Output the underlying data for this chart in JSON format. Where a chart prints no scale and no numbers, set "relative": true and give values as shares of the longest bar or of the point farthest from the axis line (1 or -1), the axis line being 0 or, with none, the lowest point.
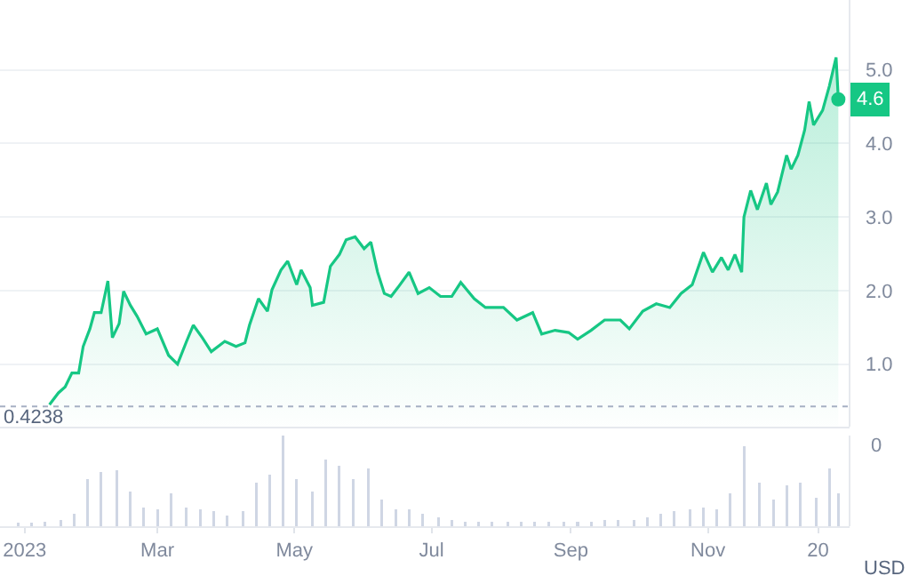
{
  "chart_data": [
    {
      "type": "area",
      "color": "#16c784",
      "x": [
        "2023-01-12",
        "2023-01-16",
        "2023-01-19",
        "2023-01-22",
        "2023-01-25",
        "2023-01-27",
        "2023-01-30",
        "2023-02-01",
        "2023-02-04",
        "2023-02-07",
        "2023-02-09",
        "2023-02-12",
        "2023-02-14",
        "2023-02-17",
        "2023-02-20",
        "2023-02-24",
        "2023-03-01",
        "2023-03-06",
        "2023-03-10",
        "2023-03-14",
        "2023-03-17",
        "2023-03-21",
        "2023-03-25",
        "2023-03-31",
        "2023-04-05",
        "2023-04-09",
        "2023-04-11",
        "2023-04-15",
        "2023-04-19",
        "2023-04-21",
        "2023-04-25",
        "2023-04-28",
        "2023-05-02",
        "2023-05-04",
        "2023-05-08",
        "2023-05-09",
        "2023-05-14",
        "2023-05-17",
        "2023-05-21",
        "2023-05-24",
        "2023-05-28",
        "2023-06-01",
        "2023-06-04",
        "2023-06-07",
        "2023-06-10",
        "2023-06-13",
        "2023-06-16",
        "2023-06-21",
        "2023-06-25",
        "2023-06-30",
        "2023-07-05",
        "2023-07-10",
        "2023-07-14",
        "2023-07-20",
        "2023-07-25",
        "2023-08-02",
        "2023-08-08",
        "2023-08-15",
        "2023-08-19",
        "2023-08-25",
        "2023-08-31",
        "2023-09-04",
        "2023-09-10",
        "2023-09-16",
        "2023-09-23",
        "2023-09-27",
        "2023-10-03",
        "2023-10-09",
        "2023-10-15",
        "2023-10-20",
        "2023-10-25",
        "2023-10-30",
        "2023-11-03",
        "2023-11-07",
        "2023-11-10",
        "2023-11-13",
        "2023-11-16",
        "2023-11-17",
        "2023-11-20",
        "2023-11-23",
        "2023-11-27",
        "2023-11-29",
        "2023-12-02",
        "2023-12-06",
        "2023-12-08",
        "2023-12-11",
        "2023-12-14",
        "2023-12-16",
        "2023-12-18",
        "2023-12-22",
        "2023-12-25",
        "2023-12-28",
        "2023-12-29"
      ],
      "values": [
        0.45,
        0.61,
        0.69,
        0.88,
        0.88,
        1.24,
        1.48,
        1.7,
        1.7,
        2.13,
        1.36,
        1.55,
        1.99,
        1.8,
        1.65,
        1.41,
        1.48,
        1.12,
        1.0,
        1.31,
        1.53,
        1.36,
        1.17,
        1.31,
        1.24,
        1.29,
        1.53,
        1.89,
        1.72,
        2.01,
        2.28,
        2.4,
        2.08,
        2.28,
        2.04,
        1.8,
        1.84,
        2.33,
        2.49,
        2.69,
        2.73,
        2.57,
        2.66,
        2.25,
        1.96,
        1.92,
        2.04,
        2.25,
        1.96,
        2.04,
        1.92,
        1.92,
        2.11,
        1.89,
        1.77,
        1.77,
        1.6,
        1.7,
        1.41,
        1.46,
        1.43,
        1.34,
        1.46,
        1.6,
        1.6,
        1.48,
        1.72,
        1.82,
        1.77,
        1.96,
        2.08,
        2.52,
        2.25,
        2.45,
        2.28,
        2.49,
        2.25,
        3.0,
        3.36,
        3.1,
        3.46,
        3.17,
        3.34,
        3.84,
        3.65,
        3.84,
        4.18,
        4.57,
        4.25,
        4.45,
        4.78,
        5.17,
        4.6
      ],
      "xlim": [
        "2022-12-21",
        "2024-01-03"
      ],
      "ylim": [
        0.15,
        5.95
      ],
      "yticks": [
        {
          "value": 1,
          "label": "1.0"
        },
        {
          "value": 2,
          "label": "2.0"
        },
        {
          "value": 3,
          "label": "3.0"
        },
        {
          "value": 4,
          "label": "4.0"
        },
        {
          "value": 5,
          "label": "5.0"
        }
      ],
      "grid": "y",
      "tick_labels": "y",
      "ref_lines": [
        {
          "axis": "y",
          "value": 0.4238,
          "label": "0.4238",
          "line_style": "dotted"
        }
      ],
      "annotations": [
        {
          "text": "4.6",
          "x": "2023-12-29",
          "y": 4.6
        }
      ]
    },
    {
      "type": "bar",
      "relative": true,
      "color": "#cfd6e4",
      "x": [
        "2022-12-29",
        "2023-01-04",
        "2023-01-10",
        "2023-01-17",
        "2023-01-23",
        "2023-01-29",
        "2023-02-04",
        "2023-02-11",
        "2023-02-17",
        "2023-02-23",
        "2023-03-01",
        "2023-03-07",
        "2023-03-14",
        "2023-03-20",
        "2023-03-26",
        "2023-04-01",
        "2023-04-08",
        "2023-04-14",
        "2023-04-20",
        "2023-04-26",
        "2023-05-02",
        "2023-05-09",
        "2023-05-15",
        "2023-05-21",
        "2023-05-27",
        "2023-06-03",
        "2023-06-09",
        "2023-06-15",
        "2023-06-21",
        "2023-06-27",
        "2023-07-04",
        "2023-07-10",
        "2023-07-16",
        "2023-07-22",
        "2023-07-28",
        "2023-08-04",
        "2023-08-10",
        "2023-08-16",
        "2023-08-22",
        "2023-08-29",
        "2023-09-04",
        "2023-09-10",
        "2023-09-16",
        "2023-09-22",
        "2023-09-29",
        "2023-10-05",
        "2023-10-11",
        "2023-10-17",
        "2023-10-24",
        "2023-10-30",
        "2023-11-05",
        "2023-11-11",
        "2023-11-17",
        "2023-11-24",
        "2023-11-30",
        "2023-12-06",
        "2023-12-12",
        "2023-12-19",
        "2023-12-25",
        "2023-12-29"
      ],
      "values": [
        0.04,
        0.04,
        0.05,
        0.07,
        0.14,
        0.52,
        0.6,
        0.62,
        0.38,
        0.21,
        0.19,
        0.36,
        0.21,
        0.19,
        0.17,
        0.12,
        0.17,
        0.48,
        0.57,
        1,
        0.52,
        0.38,
        0.74,
        0.67,
        0.52,
        0.64,
        0.29,
        0.19,
        0.19,
        0.14,
        0.1,
        0.07,
        0.05,
        0.05,
        0.05,
        0.05,
        0.05,
        0.05,
        0.05,
        0.05,
        0.05,
        0.05,
        0.07,
        0.07,
        0.07,
        0.1,
        0.14,
        0.17,
        0.19,
        0.21,
        0.19,
        0.36,
        0.88,
        0.48,
        0.29,
        0.45,
        0.48,
        0.31,
        0.64,
        0.36
      ],
      "xlim": [
        "2022-12-21",
        "2024-01-03"
      ],
      "xticks": [
        {
          "value": "2023-01-01",
          "label": "2023"
        },
        {
          "value": "2023-03-01",
          "label": "Mar"
        },
        {
          "value": "2023-05-01",
          "label": "May"
        },
        {
          "value": "2023-07-01",
          "label": "Jul"
        },
        {
          "value": "2023-09-01",
          "label": "Sep"
        },
        {
          "value": "2023-11-01",
          "label": "Nov"
        },
        {
          "value": "2023-12-20",
          "label": "20"
        }
      ],
      "tick_labels": "x",
      "annotations": [
        "0",
        "USD"
      ]
    }
  ]
}
